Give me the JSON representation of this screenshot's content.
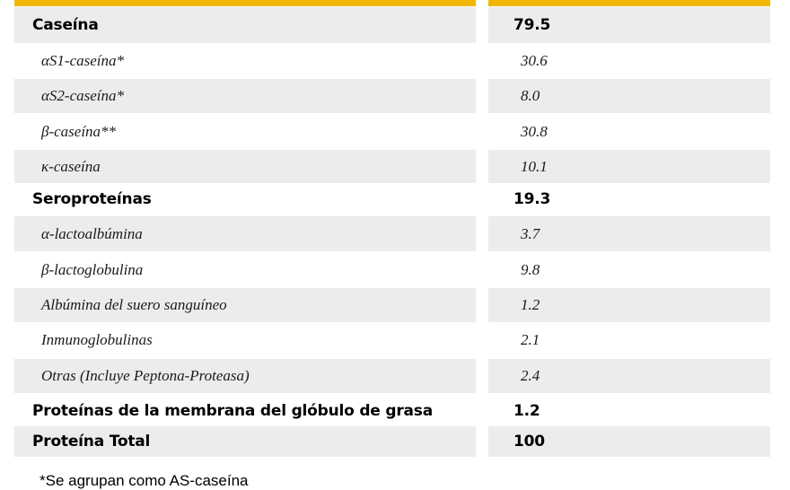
{
  "table": {
    "rows": [
      {
        "label": "Caseína",
        "value": "79.5",
        "kind": "header",
        "shaded": true
      },
      {
        "label": "αS1-caseína*",
        "value": "30.6",
        "kind": "sub",
        "shaded": false
      },
      {
        "label": "αS2-caseína*",
        "value": "8.0",
        "kind": "sub",
        "shaded": true
      },
      {
        "label": "β-caseína**",
        "value": "30.8",
        "kind": "sub",
        "shaded": false
      },
      {
        "label": "κ-caseína",
        "value": "10.1",
        "kind": "sub",
        "shaded": true
      },
      {
        "label": "Seroproteínas",
        "value": "19.3",
        "kind": "header",
        "shaded": false
      },
      {
        "label": "α-lactoalbúmina",
        "value": "3.7",
        "kind": "sub",
        "shaded": true
      },
      {
        "label": "β-lactoglobulina",
        "value": "9.8",
        "kind": "sub",
        "shaded": false
      },
      {
        "label": "Albúmina del suero sanguíneo",
        "value": "1.2",
        "kind": "sub",
        "shaded": true
      },
      {
        "label": "Inmunoglobulinas",
        "value": "2.1",
        "kind": "sub",
        "shaded": false
      },
      {
        "label": "Otras (Incluye Peptona-Proteasa)",
        "value": "2.4",
        "kind": "sub",
        "shaded": true
      },
      {
        "label": "Proteínas de la membrana del glóbulo de grasa",
        "value": "1.2",
        "kind": "header",
        "shaded": false
      },
      {
        "label": "Proteína Total",
        "value": "100",
        "kind": "header",
        "shaded": true
      }
    ]
  },
  "footnote": "*Se agrupan como AS-caseína",
  "colors": {
    "accent": "#f2b705",
    "shade": "#ececec"
  }
}
